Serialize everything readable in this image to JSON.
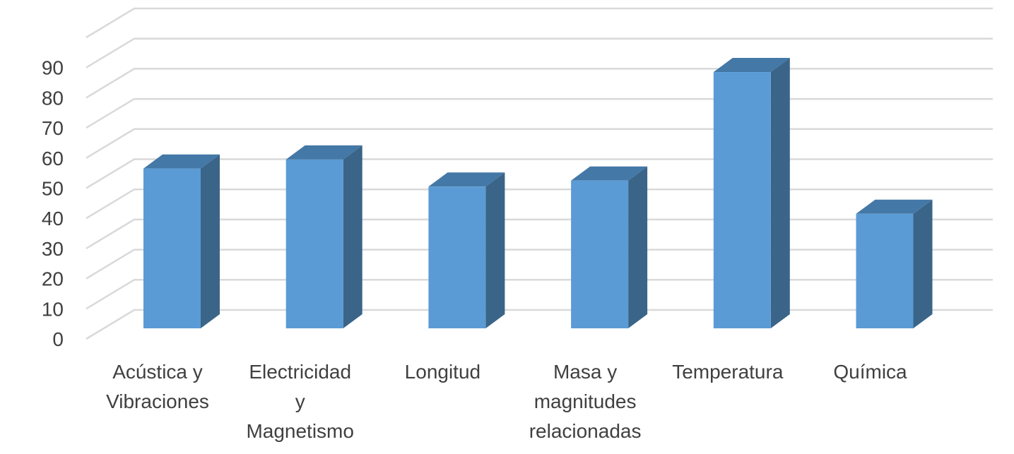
{
  "chart_data": {
    "type": "bar",
    "style": "3d-column",
    "categories": [
      [
        "Acústica y",
        "Vibraciones"
      ],
      [
        "Electricidad",
        "y",
        "Magnetismo"
      ],
      [
        "Longitud"
      ],
      [
        "Masa y",
        "magnitudes",
        "relacionadas"
      ],
      [
        "Temperatura"
      ],
      [
        "Química"
      ]
    ],
    "values": [
      53,
      56,
      47,
      49,
      85,
      38
    ],
    "ylim": [
      0,
      90
    ],
    "yticks": [
      "0",
      "10",
      "20",
      "30",
      "40",
      "50",
      "60",
      "70",
      "80",
      "90"
    ],
    "grid": true,
    "legend": "none",
    "colors": {
      "bar_front": "#5b9bd5",
      "bar_side": "#3a6588",
      "bar_top": "#4478a6",
      "grid": "#d9d9d9",
      "text": "#404040"
    }
  }
}
